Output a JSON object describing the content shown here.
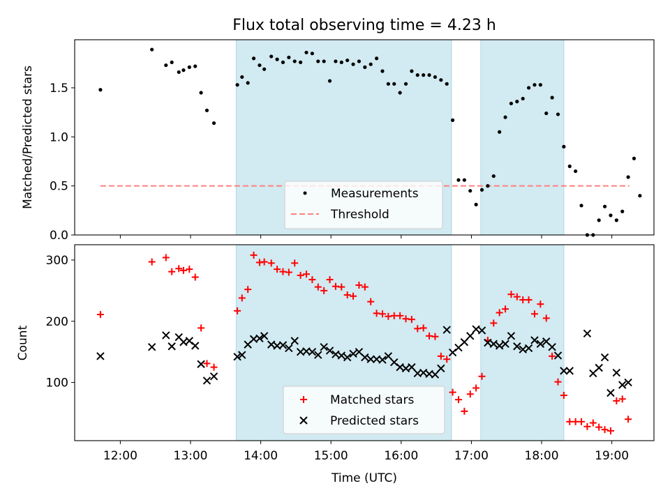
{
  "figure": {
    "title": "Flux total observing time = 4.23 h",
    "xlabel": "Time (UTC)",
    "x_ticks": [
      "12:00",
      "13:00",
      "14:00",
      "15:00",
      "16:00",
      "17:00",
      "18:00",
      "19:00"
    ]
  },
  "colors": {
    "shade": "#add8e6",
    "measurement": "#000000",
    "threshold": "#ff7f7f",
    "matched": "#ff0000",
    "predicted": "#000000"
  },
  "chart_data": [
    {
      "type": "scatter",
      "panel": "ratio",
      "ylabel": "Matched/Predicted stars",
      "xlim": [
        "11:21",
        "19:36"
      ],
      "ylim": [
        0,
        1.99
      ],
      "y_ticks": [
        "0.0",
        "0.5",
        "1.0",
        "1.5"
      ],
      "shaded_intervals": [
        [
          "13:39",
          "16:43"
        ],
        [
          "17:08",
          "18:19"
        ]
      ],
      "legend": {
        "placement": "lower-center",
        "entries": [
          "Measurements",
          "Threshold"
        ]
      },
      "threshold": {
        "name": "Threshold",
        "value": 0.5,
        "x": [
          "11:43",
          "19:15"
        ]
      },
      "series": [
        {
          "name": "Measurements",
          "points": [
            [
              "11:43",
              1.48
            ],
            [
              "12:27",
              1.89
            ],
            [
              "12:39",
              1.73
            ],
            [
              "12:44",
              1.76
            ],
            [
              "12:50",
              1.66
            ],
            [
              "12:54",
              1.68
            ],
            [
              "12:59",
              1.71
            ],
            [
              "13:04",
              1.72
            ],
            [
              "13:09",
              1.45
            ],
            [
              "13:14",
              1.27
            ],
            [
              "13:20",
              1.14
            ],
            [
              "13:40",
              1.53
            ],
            [
              "13:44",
              1.61
            ],
            [
              "13:49",
              1.55
            ],
            [
              "13:54",
              1.8
            ],
            [
              "13:59",
              1.73
            ],
            [
              "14:03",
              1.69
            ],
            [
              "14:09",
              1.82
            ],
            [
              "14:14",
              1.79
            ],
            [
              "14:19",
              1.76
            ],
            [
              "14:24",
              1.81
            ],
            [
              "14:29",
              1.77
            ],
            [
              "14:34",
              1.76
            ],
            [
              "14:39",
              1.86
            ],
            [
              "14:44",
              1.85
            ],
            [
              "14:49",
              1.77
            ],
            [
              "14:54",
              1.77
            ],
            [
              "14:59",
              1.57
            ],
            [
              "15:04",
              1.77
            ],
            [
              "15:09",
              1.76
            ],
            [
              "15:14",
              1.78
            ],
            [
              "15:19",
              1.74
            ],
            [
              "15:24",
              1.77
            ],
            [
              "15:29",
              1.71
            ],
            [
              "15:34",
              1.74
            ],
            [
              "15:39",
              1.8
            ],
            [
              "15:44",
              1.67
            ],
            [
              "15:49",
              1.54
            ],
            [
              "15:54",
              1.54
            ],
            [
              "15:59",
              1.45
            ],
            [
              "16:04",
              1.54
            ],
            [
              "16:09",
              1.67
            ],
            [
              "16:14",
              1.63
            ],
            [
              "16:19",
              1.63
            ],
            [
              "16:24",
              1.63
            ],
            [
              "16:29",
              1.61
            ],
            [
              "16:34",
              1.58
            ],
            [
              "16:39",
              1.54
            ],
            [
              "16:44",
              1.17
            ],
            [
              "16:49",
              0.56
            ],
            [
              "16:54",
              0.56
            ],
            [
              "16:59",
              0.45
            ],
            [
              "17:04",
              0.31
            ],
            [
              "17:09",
              0.46
            ],
            [
              "17:14",
              0.5
            ],
            [
              "17:19",
              0.6
            ],
            [
              "17:24",
              1.05
            ],
            [
              "17:29",
              1.2
            ],
            [
              "17:34",
              1.34
            ],
            [
              "17:39",
              1.36
            ],
            [
              "17:44",
              1.39
            ],
            [
              "17:49",
              1.5
            ],
            [
              "17:54",
              1.53
            ],
            [
              "17:59",
              1.53
            ],
            [
              "18:04",
              1.24
            ],
            [
              "18:09",
              1.4
            ],
            [
              "18:14",
              1.23
            ],
            [
              "18:19",
              0.9
            ],
            [
              "18:24",
              0.7
            ],
            [
              "18:29",
              0.65
            ],
            [
              "18:34",
              0.3
            ],
            [
              "18:39",
              0.0
            ],
            [
              "18:44",
              0.0
            ],
            [
              "18:49",
              0.15
            ],
            [
              "18:54",
              0.29
            ],
            [
              "18:59",
              0.2
            ],
            [
              "19:04",
              0.15
            ],
            [
              "19:09",
              0.24
            ],
            [
              "19:14",
              0.59
            ],
            [
              "19:19",
              0.78
            ],
            [
              "19:24",
              0.4
            ]
          ]
        }
      ]
    },
    {
      "type": "scatter",
      "panel": "count",
      "ylabel": "Count",
      "xlim": [
        "11:21",
        "19:36"
      ],
      "ylim": [
        5,
        325
      ],
      "y_ticks": [
        "100",
        "200",
        "300"
      ],
      "shaded_intervals": [
        [
          "13:39",
          "16:43"
        ],
        [
          "17:08",
          "18:19"
        ]
      ],
      "legend": {
        "placement": "lower-center",
        "entries": [
          "Matched stars",
          "Predicted stars"
        ]
      },
      "series": [
        {
          "name": "Matched stars",
          "points": [
            [
              "11:43",
              211
            ],
            [
              "12:27",
              297
            ],
            [
              "12:39",
              304
            ],
            [
              "12:44",
              281
            ],
            [
              "12:50",
              286
            ],
            [
              "12:54",
              283
            ],
            [
              "12:59",
              285
            ],
            [
              "13:04",
              272
            ],
            [
              "13:09",
              189
            ],
            [
              "13:14",
              131
            ],
            [
              "13:20",
              125
            ],
            [
              "13:40",
              217
            ],
            [
              "13:44",
              238
            ],
            [
              "13:49",
              252
            ],
            [
              "13:54",
              308
            ],
            [
              "13:59",
              296
            ],
            [
              "14:03",
              297
            ],
            [
              "14:09",
              295
            ],
            [
              "14:14",
              285
            ],
            [
              "14:19",
              281
            ],
            [
              "14:24",
              280
            ],
            [
              "14:29",
              295
            ],
            [
              "14:34",
              275
            ],
            [
              "14:39",
              277
            ],
            [
              "14:44",
              268
            ],
            [
              "14:49",
              256
            ],
            [
              "14:54",
              250
            ],
            [
              "14:59",
              268
            ],
            [
              "15:04",
              257
            ],
            [
              "15:09",
              256
            ],
            [
              "15:14",
              243
            ],
            [
              "15:19",
              241
            ],
            [
              "15:24",
              259
            ],
            [
              "15:29",
              256
            ],
            [
              "15:34",
              232
            ],
            [
              "15:39",
              213
            ],
            [
              "15:44",
              212
            ],
            [
              "15:49",
              208
            ],
            [
              "15:54",
              209
            ],
            [
              "15:59",
              209
            ],
            [
              "16:04",
              204
            ],
            [
              "16:09",
              203
            ],
            [
              "16:14",
              188
            ],
            [
              "16:19",
              189
            ],
            [
              "16:24",
              176
            ],
            [
              "16:29",
              175
            ],
            [
              "16:34",
              143
            ],
            [
              "16:39",
              138
            ],
            [
              "16:44",
              84
            ],
            [
              "16:49",
              72
            ],
            [
              "16:54",
              53
            ],
            [
              "16:59",
              81
            ],
            [
              "17:04",
              91
            ],
            [
              "17:09",
              110
            ],
            [
              "17:14",
              169
            ],
            [
              "17:19",
              197
            ],
            [
              "17:24",
              214
            ],
            [
              "17:29",
              220
            ],
            [
              "17:34",
              244
            ],
            [
              "17:39",
              240
            ],
            [
              "17:44",
              235
            ],
            [
              "17:49",
              235
            ],
            [
              "17:54",
              212
            ],
            [
              "17:59",
              228
            ],
            [
              "18:04",
              205
            ],
            [
              "18:09",
              143
            ],
            [
              "18:14",
              101
            ],
            [
              "18:19",
              79
            ],
            [
              "18:24",
              36
            ],
            [
              "18:29",
              36
            ],
            [
              "18:34",
              36
            ],
            [
              "18:39",
              28
            ],
            [
              "18:44",
              34
            ],
            [
              "18:49",
              27
            ],
            [
              "18:54",
              23
            ],
            [
              "18:59",
              21
            ],
            [
              "19:04",
              70
            ],
            [
              "19:09",
              73
            ],
            [
              "19:14",
              40
            ]
          ]
        },
        {
          "name": "Predicted stars",
          "points": [
            [
              "11:43",
              143
            ],
            [
              "12:27",
              158
            ],
            [
              "12:39",
              177
            ],
            [
              "12:44",
              159
            ],
            [
              "12:50",
              174
            ],
            [
              "12:54",
              166
            ],
            [
              "12:59",
              168
            ],
            [
              "13:04",
              160
            ],
            [
              "13:09",
              130
            ],
            [
              "13:14",
              103
            ],
            [
              "13:20",
              110
            ],
            [
              "13:40",
              142
            ],
            [
              "13:44",
              145
            ],
            [
              "13:49",
              162
            ],
            [
              "13:54",
              171
            ],
            [
              "13:59",
              172
            ],
            [
              "14:03",
              176
            ],
            [
              "14:09",
              162
            ],
            [
              "14:14",
              160
            ],
            [
              "14:19",
              161
            ],
            [
              "14:24",
              156
            ],
            [
              "14:29",
              168
            ],
            [
              "14:34",
              150
            ],
            [
              "14:39",
              151
            ],
            [
              "14:44",
              150
            ],
            [
              "14:49",
              145
            ],
            [
              "14:54",
              158
            ],
            [
              "14:59",
              152
            ],
            [
              "15:04",
              146
            ],
            [
              "15:09",
              144
            ],
            [
              "15:14",
              141
            ],
            [
              "15:19",
              147
            ],
            [
              "15:24",
              150
            ],
            [
              "15:29",
              141
            ],
            [
              "15:34",
              138
            ],
            [
              "15:39",
              138
            ],
            [
              "15:44",
              137
            ],
            [
              "15:49",
              143
            ],
            [
              "15:54",
              133
            ],
            [
              "15:59",
              125
            ],
            [
              "16:04",
              123
            ],
            [
              "16:09",
              125
            ],
            [
              "16:14",
              115
            ],
            [
              "16:19",
              116
            ],
            [
              "16:24",
              114
            ],
            [
              "16:29",
              113
            ],
            [
              "16:34",
              123
            ],
            [
              "16:39",
              186
            ],
            [
              "16:44",
              149
            ],
            [
              "16:49",
              157
            ],
            [
              "16:54",
              166
            ],
            [
              "16:59",
              176
            ],
            [
              "17:04",
              187
            ],
            [
              "17:09",
              185
            ],
            [
              "17:14",
              165
            ],
            [
              "17:19",
              163
            ],
            [
              "17:24",
              160
            ],
            [
              "17:29",
              163
            ],
            [
              "17:34",
              176
            ],
            [
              "17:39",
              159
            ],
            [
              "17:44",
              154
            ],
            [
              "17:49",
              156
            ],
            [
              "17:54",
              169
            ],
            [
              "17:59",
              163
            ],
            [
              "18:04",
              167
            ],
            [
              "18:09",
              158
            ],
            [
              "18:14",
              144
            ],
            [
              "18:19",
              119
            ],
            [
              "18:24",
              119
            ],
            [
              "18:39",
              180
            ],
            [
              "18:44",
              115
            ],
            [
              "18:49",
              124
            ],
            [
              "18:54",
              141
            ],
            [
              "18:59",
              83
            ],
            [
              "19:04",
              116
            ],
            [
              "19:09",
              96
            ],
            [
              "19:14",
              100
            ]
          ]
        }
      ]
    }
  ]
}
